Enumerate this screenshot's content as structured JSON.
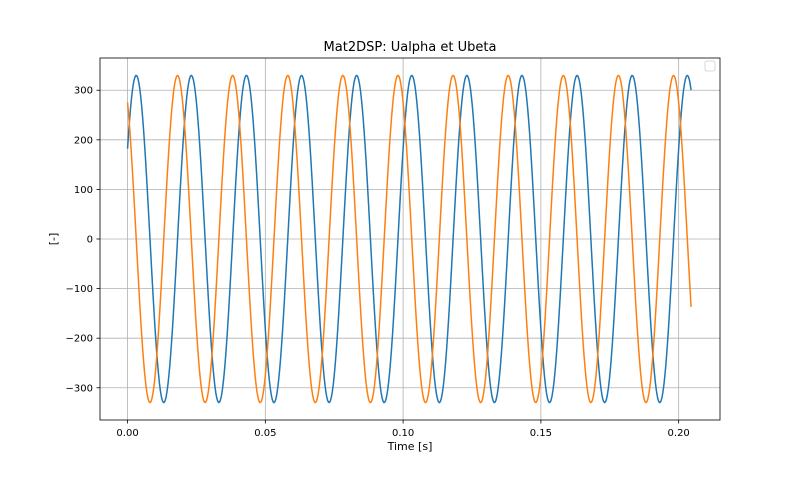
{
  "chart_data": {
    "type": "line",
    "title": "Mat2DSP: Ualpha et Ubeta",
    "xlabel": "Time [s]",
    "ylabel": "[-]",
    "xlim": [
      -0.01,
      0.215
    ],
    "ylim": [
      -365,
      365
    ],
    "xticks": [
      0.0,
      0.05,
      0.1,
      0.15,
      0.2
    ],
    "xtick_labels": [
      "0.00",
      "0.05",
      "0.10",
      "0.15",
      "0.20"
    ],
    "yticks": [
      -300,
      -200,
      -100,
      0,
      100,
      200,
      300
    ],
    "ytick_labels": [
      "−300",
      "−200",
      "−100",
      "0",
      "100",
      "200",
      "300"
    ],
    "grid": true,
    "legend": "top-right, empty",
    "series": [
      {
        "color": "#1f77b4",
        "amplitude": 330,
        "frequency_hz": 50,
        "phase_deg": 33.5,
        "x_start": 0.0,
        "x_end": 0.2045,
        "points": 600
      },
      {
        "color": "#ff7f0e",
        "amplitude": 330,
        "frequency_hz": 50,
        "phase_deg": 123.5,
        "x_start": 0.0,
        "x_end": 0.2045,
        "points": 600
      }
    ]
  }
}
